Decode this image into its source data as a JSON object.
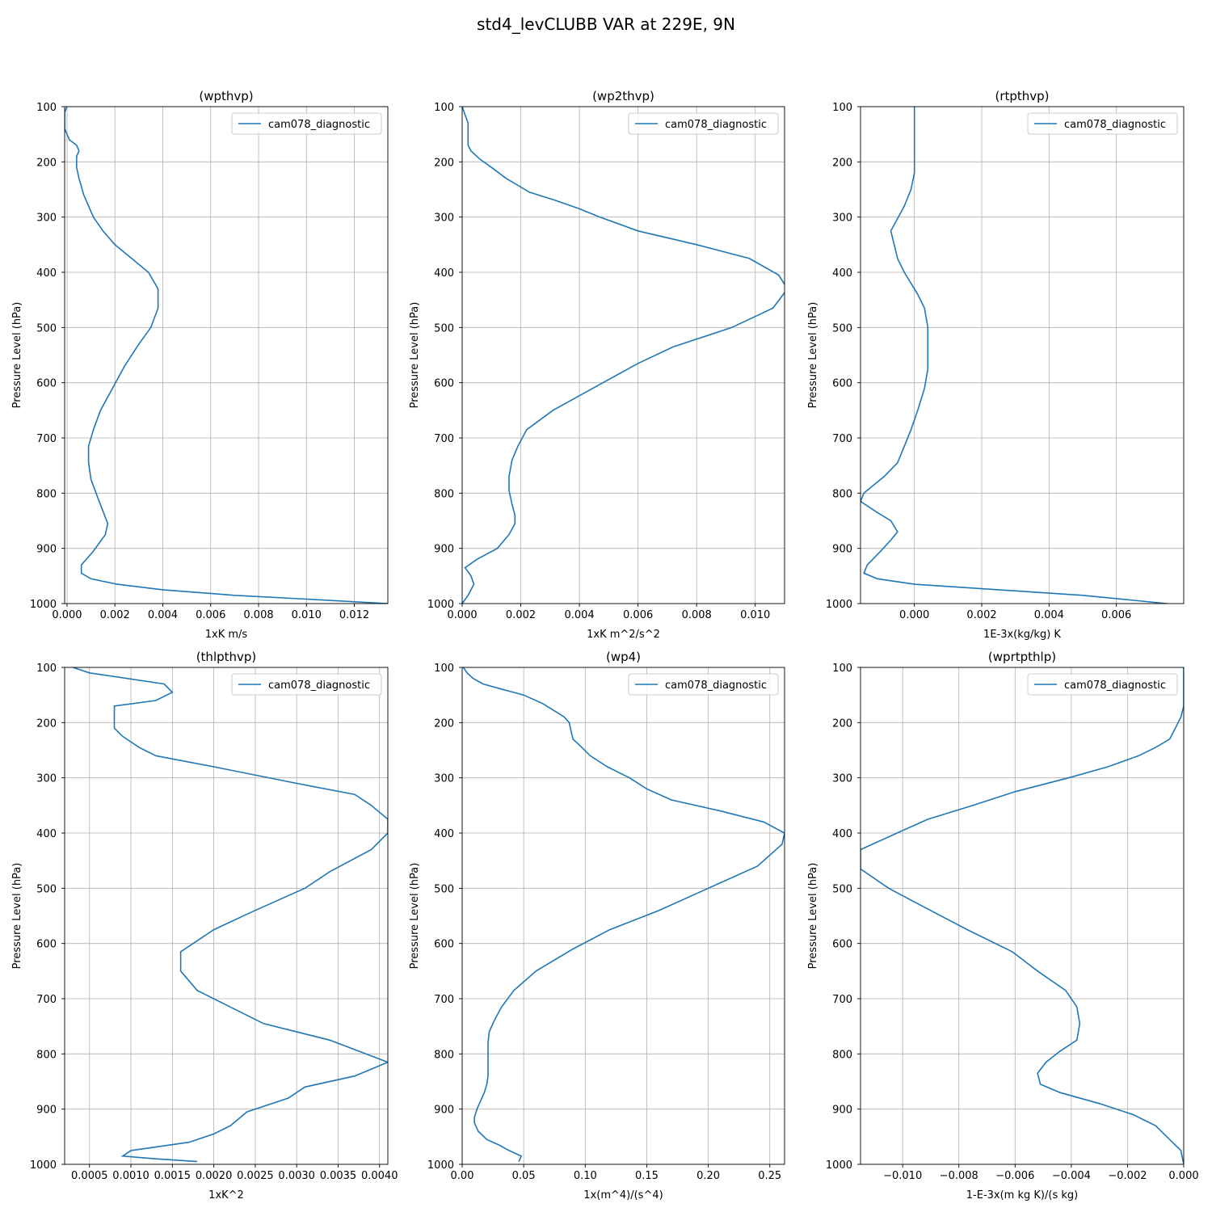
{
  "figure": {
    "title": "std4_levCLUBB VAR at 229E, 9N",
    "line_color": "#1f77b4"
  },
  "chart_data": [
    {
      "type": "line",
      "title": "(wpthvp)",
      "xlabel": "1xK m/s",
      "ylabel": "Pressure Level (hPa)",
      "xlim": [
        -0.0001,
        0.0134
      ],
      "ylim": [
        1000,
        100
      ],
      "xticks": [
        0.0,
        0.002,
        0.004,
        0.006,
        0.008,
        0.01,
        0.012
      ],
      "xtick_labels": [
        "0.000",
        "0.002",
        "0.004",
        "0.006",
        "0.008",
        "0.010",
        "0.012"
      ],
      "yticks": [
        100,
        200,
        300,
        400,
        500,
        600,
        700,
        800,
        900,
        1000
      ],
      "grid": true,
      "legend": "upper-right",
      "series": [
        {
          "name": "cam078_diagnostic",
          "x": [
            0.0,
            -0.0001,
            -0.0001,
            0.0001,
            0.0004,
            0.0005,
            0.0004,
            0.0004,
            0.0005,
            0.0007,
            0.0011,
            0.0015,
            0.002,
            0.0027,
            0.0034,
            0.0038,
            0.0038,
            0.0035,
            0.003,
            0.0024,
            0.0019,
            0.0014,
            0.0011,
            0.0009,
            0.0009,
            0.001,
            0.0013,
            0.0017,
            0.0016,
            0.0011,
            0.0006,
            0.0006,
            0.001,
            0.0021,
            0.004,
            0.007,
            0.01,
            0.0134
          ],
          "y": [
            100,
            110,
            140,
            160,
            170,
            180,
            190,
            210,
            230,
            260,
            300,
            325,
            350,
            375,
            400,
            430,
            465,
            500,
            530,
            570,
            610,
            650,
            685,
            715,
            745,
            775,
            810,
            855,
            875,
            905,
            930,
            945,
            955,
            965,
            975,
            985,
            992,
            1000
          ]
        }
      ]
    },
    {
      "type": "line",
      "title": "(wp2thvp)",
      "xlabel": "1xK m^2/s^2",
      "ylabel": "Pressure Level (hPa)",
      "xlim": [
        0.0,
        0.011
      ],
      "ylim": [
        1000,
        100
      ],
      "xticks": [
        0.0,
        0.002,
        0.004,
        0.006,
        0.008,
        0.01
      ],
      "xtick_labels": [
        "0.000",
        "0.002",
        "0.004",
        "0.006",
        "0.008",
        "0.010"
      ],
      "yticks": [
        100,
        200,
        300,
        400,
        500,
        600,
        700,
        800,
        900,
        1000
      ],
      "grid": true,
      "legend": "upper-right",
      "series": [
        {
          "name": "cam078_diagnostic",
          "x": [
            0.0,
            0.0002,
            0.0002,
            0.0002,
            0.0003,
            0.0006,
            0.001,
            0.0015,
            0.0023,
            0.0032,
            0.004,
            0.0047,
            0.006,
            0.008,
            0.0098,
            0.0108,
            0.0111,
            0.0106,
            0.0092,
            0.0072,
            0.006,
            0.0048,
            0.0031,
            0.0022,
            0.0019,
            0.0017,
            0.0016,
            0.0016,
            0.0017,
            0.0018,
            0.0018,
            0.0016,
            0.0012,
            0.0005,
            0.0001,
            0.0003,
            0.0004,
            0.0002,
            0.0
          ],
          "y": [
            100,
            130,
            140,
            170,
            180,
            195,
            210,
            230,
            255,
            270,
            285,
            300,
            325,
            350,
            375,
            405,
            430,
            465,
            500,
            535,
            565,
            600,
            650,
            685,
            715,
            740,
            770,
            795,
            820,
            840,
            855,
            875,
            900,
            920,
            935,
            950,
            965,
            985,
            1000
          ]
        }
      ]
    },
    {
      "type": "line",
      "title": "(rtpthvp)",
      "xlabel": "1E-3x(kg/kg) K",
      "ylabel": "Pressure Level (hPa)",
      "xlim": [
        -0.0016,
        0.008
      ],
      "ylim": [
        1000,
        100
      ],
      "xticks": [
        0.0,
        0.002,
        0.004,
        0.006
      ],
      "xtick_labels": [
        "0.000",
        "0.002",
        "0.004",
        "0.006"
      ],
      "yticks": [
        100,
        200,
        300,
        400,
        500,
        600,
        700,
        800,
        900,
        1000
      ],
      "grid": true,
      "legend": "upper-right",
      "series": [
        {
          "name": "cam078_diagnostic",
          "x": [
            0.0,
            0.0,
            0.0,
            0.0,
            -0.0001,
            -0.0003,
            -0.0007,
            -0.0006,
            -0.0005,
            -0.0003,
            0.0001,
            0.0003,
            0.0004,
            0.0004,
            0.0004,
            0.0003,
            0.0001,
            -0.0001,
            -0.0003,
            -0.0005,
            -0.0009,
            -0.0014,
            -0.0015,
            -0.0016,
            -0.0011,
            -0.0007,
            -0.0005,
            -0.0007,
            -0.001,
            -0.0014,
            -0.0015,
            -0.0011,
            0.0,
            0.0025,
            0.005,
            0.0075
          ],
          "y": [
            100,
            150,
            180,
            220,
            250,
            280,
            325,
            350,
            375,
            400,
            440,
            465,
            500,
            530,
            575,
            610,
            650,
            685,
            715,
            745,
            770,
            795,
            800,
            815,
            835,
            850,
            870,
            885,
            905,
            930,
            945,
            955,
            965,
            975,
            985,
            1000
          ]
        }
      ]
    },
    {
      "type": "line",
      "title": "(thlpthvp)",
      "xlabel": "1xK^2",
      "ylabel": "Pressure Level (hPa)",
      "xlim": [
        0.0002,
        0.0041
      ],
      "ylim": [
        1000,
        100
      ],
      "xticks": [
        0.0005,
        0.001,
        0.0015,
        0.002,
        0.0025,
        0.003,
        0.0035,
        0.004
      ],
      "xtick_labels": [
        "0.0005",
        "0.0010",
        "0.0015",
        "0.0020",
        "0.0025",
        "0.0030",
        "0.0035",
        "0.0040"
      ],
      "yticks": [
        100,
        200,
        300,
        400,
        500,
        600,
        700,
        800,
        900,
        1000
      ],
      "grid": true,
      "legend": "upper-right",
      "series": [
        {
          "name": "cam078_diagnostic",
          "x": [
            0.0003,
            0.0005,
            0.0014,
            0.0015,
            0.0013,
            0.0008,
            0.0008,
            0.0008,
            0.0009,
            0.0011,
            0.0013,
            0.002,
            0.003,
            0.0037,
            0.0039,
            0.0041,
            0.0041,
            0.0039,
            0.0034,
            0.0031,
            0.0025,
            0.002,
            0.0016,
            0.0016,
            0.0018,
            0.0022,
            0.0026,
            0.0034,
            0.0041,
            0.0037,
            0.0031,
            0.0029,
            0.0024,
            0.0022,
            0.002,
            0.0017,
            0.001,
            0.0009,
            0.0013,
            0.0018
          ],
          "y": [
            100,
            110,
            130,
            145,
            160,
            170,
            185,
            210,
            225,
            245,
            260,
            280,
            310,
            330,
            350,
            375,
            400,
            430,
            470,
            500,
            540,
            575,
            615,
            650,
            685,
            715,
            745,
            775,
            815,
            840,
            860,
            880,
            905,
            930,
            945,
            960,
            975,
            985,
            990,
            995
          ]
        }
      ]
    },
    {
      "type": "line",
      "title": "(wp4)",
      "xlabel": "1x(m^4)/(s^4)",
      "ylabel": "Pressure Level (hPa)",
      "xlim": [
        0.0,
        0.262
      ],
      "ylim": [
        1000,
        100
      ],
      "xticks": [
        0.0,
        0.05,
        0.1,
        0.15,
        0.2,
        0.25
      ],
      "xtick_labels": [
        "0.00",
        "0.05",
        "0.10",
        "0.15",
        "0.20",
        "0.25"
      ],
      "yticks": [
        100,
        200,
        300,
        400,
        500,
        600,
        700,
        800,
        900,
        1000
      ],
      "grid": true,
      "legend": "upper-right",
      "series": [
        {
          "name": "cam078_diagnostic",
          "x": [
            0.001,
            0.004,
            0.009,
            0.017,
            0.033,
            0.05,
            0.065,
            0.076,
            0.083,
            0.087,
            0.088,
            0.09,
            0.095,
            0.104,
            0.118,
            0.136,
            0.15,
            0.17,
            0.21,
            0.245,
            0.262,
            0.26,
            0.24,
            0.2,
            0.16,
            0.12,
            0.09,
            0.06,
            0.042,
            0.032,
            0.026,
            0.022,
            0.021,
            0.021,
            0.021,
            0.021,
            0.02,
            0.018,
            0.015,
            0.012,
            0.01,
            0.01,
            0.013,
            0.02,
            0.03,
            0.038,
            0.048,
            0.046
          ],
          "y": [
            100,
            110,
            120,
            130,
            140,
            150,
            165,
            180,
            190,
            200,
            210,
            230,
            240,
            260,
            280,
            300,
            320,
            340,
            360,
            380,
            400,
            420,
            460,
            500,
            540,
            575,
            610,
            650,
            685,
            715,
            740,
            760,
            780,
            800,
            820,
            840,
            855,
            870,
            885,
            900,
            915,
            925,
            940,
            955,
            965,
            975,
            985,
            995
          ]
        }
      ]
    },
    {
      "type": "line",
      "title": "(wprtpthlp)",
      "xlabel": "1-E-3x(m kg K)/(s kg)",
      "ylabel": "Pressure Level (hPa)",
      "xlim": [
        -0.0115,
        0.0
      ],
      "ylim": [
        1000,
        100
      ],
      "xticks": [
        -0.01,
        -0.008,
        -0.006,
        -0.004,
        -0.002,
        0.0
      ],
      "xtick_labels": [
        "−0.010",
        "−0.008",
        "−0.006",
        "−0.004",
        "−0.002",
        "0.000"
      ],
      "yticks": [
        100,
        200,
        300,
        400,
        500,
        600,
        700,
        800,
        900,
        1000
      ],
      "grid": true,
      "legend": "upper-right",
      "series": [
        {
          "name": "cam078_diagnostic",
          "x": [
            0.0,
            0.0,
            0.0,
            -0.0001,
            -0.0003,
            -0.0005,
            -0.001,
            -0.0016,
            -0.0027,
            -0.0041,
            -0.006,
            -0.0075,
            -0.0091,
            -0.0102,
            -0.0115,
            -0.0115,
            -0.0105,
            -0.0092,
            -0.0077,
            -0.0061,
            -0.0052,
            -0.0042,
            -0.0038,
            -0.0037,
            -0.0038,
            -0.0044,
            -0.0049,
            -0.0052,
            -0.0051,
            -0.0044,
            -0.003,
            -0.0018,
            -0.001,
            -0.0005,
            -0.0001,
            0.0
          ],
          "y": [
            100,
            120,
            170,
            190,
            210,
            230,
            245,
            260,
            280,
            300,
            325,
            350,
            375,
            400,
            430,
            465,
            500,
            535,
            575,
            615,
            650,
            685,
            715,
            745,
            775,
            795,
            815,
            835,
            855,
            870,
            890,
            910,
            930,
            955,
            975,
            1000
          ]
        }
      ]
    }
  ]
}
